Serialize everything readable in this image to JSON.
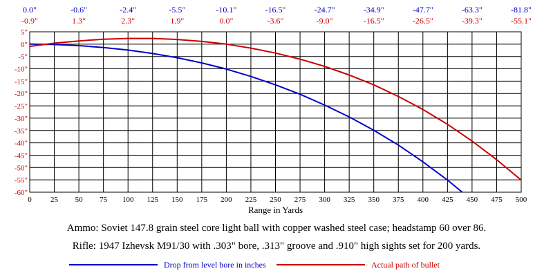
{
  "chart_data": {
    "type": "line",
    "title": "",
    "xlabel": "Range in Yards",
    "ylabel": "",
    "xlim": [
      0,
      500
    ],
    "ylim": [
      -60,
      5
    ],
    "grid": true,
    "x_ticks": [
      0,
      25,
      50,
      75,
      100,
      125,
      150,
      175,
      200,
      225,
      250,
      275,
      300,
      325,
      350,
      375,
      400,
      425,
      450,
      475,
      500
    ],
    "y_ticks": [
      "5\"",
      "0\"",
      "-5\"",
      "-10\"",
      "-15\"",
      "-20\"",
      "-25\"",
      "-30\"",
      "-35\"",
      "-40\"",
      "-45\"",
      "-50\"",
      "-55\"",
      "-60\""
    ],
    "y_tick_values": [
      5,
      0,
      -5,
      -10,
      -15,
      -20,
      -25,
      -30,
      -35,
      -40,
      -45,
      -50,
      -55,
      -60
    ],
    "top_drop_labels": [
      "0.0\"",
      "-0.6\"",
      "-2.4\"",
      "-5.5\"",
      "-10.1\"",
      "-16.5\"",
      "-24.7\"",
      "-34.9\"",
      "-47.7\"",
      "-63.3\"",
      "-81.8\""
    ],
    "top_path_labels": [
      "-0.9\"",
      "1.3\"",
      "2.3\"",
      "1.9\"",
      "0.0\"",
      "-3.6\"",
      "-9.0\"",
      "-16.5\"",
      "-26.5\"",
      "-39.3\"",
      "-55.1\""
    ],
    "top_label_x": [
      0,
      50,
      100,
      150,
      200,
      250,
      300,
      350,
      400,
      450,
      500
    ],
    "series": [
      {
        "name": "Drop from level bore in inches",
        "color": "#0000cc",
        "x": [
          0,
          25,
          50,
          75,
          100,
          125,
          150,
          175,
          200,
          225,
          250,
          275,
          300,
          325,
          350,
          375,
          400,
          425,
          440
        ],
        "values": [
          0.0,
          -0.15,
          -0.6,
          -1.35,
          -2.4,
          -3.8,
          -5.5,
          -7.6,
          -10.1,
          -13.1,
          -16.5,
          -20.3,
          -24.7,
          -29.5,
          -34.9,
          -40.9,
          -47.7,
          -55.1,
          -60.0
        ]
      },
      {
        "name": "Actual path of bullet",
        "color": "#cc0000",
        "x": [
          0,
          25,
          50,
          75,
          100,
          125,
          150,
          175,
          200,
          225,
          250,
          275,
          300,
          325,
          350,
          375,
          400,
          425,
          450,
          475,
          500
        ],
        "values": [
          -0.9,
          0.4,
          1.3,
          2.0,
          2.3,
          2.3,
          1.9,
          1.1,
          0.0,
          -1.6,
          -3.6,
          -6.1,
          -9.0,
          -12.5,
          -16.5,
          -21.2,
          -26.5,
          -32.5,
          -39.3,
          -46.8,
          -55.1
        ]
      }
    ]
  },
  "captions": {
    "ammo": "Ammo:  Soviet 147.8 grain steel core light ball with copper washed steel case; headstamp 60 over 86.",
    "rifle": "Rifle:  1947 Izhevsk M91/30 with .303\" bore, .313\" groove and .910\" high sights set for 200 yards."
  }
}
